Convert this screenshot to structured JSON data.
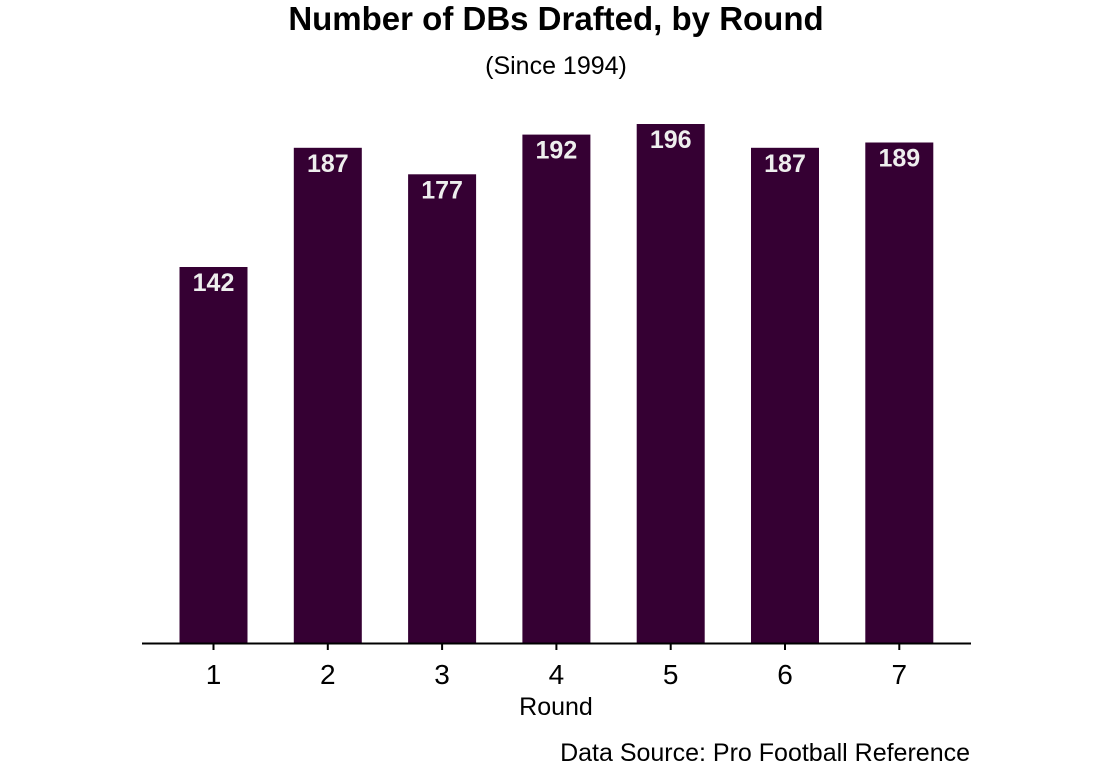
{
  "chart_data": {
    "type": "bar",
    "title": "Number of DBs Drafted, by Round",
    "subtitle": "(Since 1994)",
    "xlabel": "Round",
    "ylabel": "",
    "caption": "Data Source: Pro Football Reference",
    "categories": [
      "1",
      "2",
      "3",
      "4",
      "5",
      "6",
      "7"
    ],
    "values": [
      142,
      187,
      177,
      192,
      196,
      187,
      189
    ],
    "data_labels": [
      "142",
      "187",
      "177",
      "192",
      "196",
      "187",
      "189"
    ],
    "ylim": [
      0,
      196
    ],
    "grid": false,
    "legend": "none",
    "bar_color": "#350033",
    "label_color": "#eeeeee"
  }
}
